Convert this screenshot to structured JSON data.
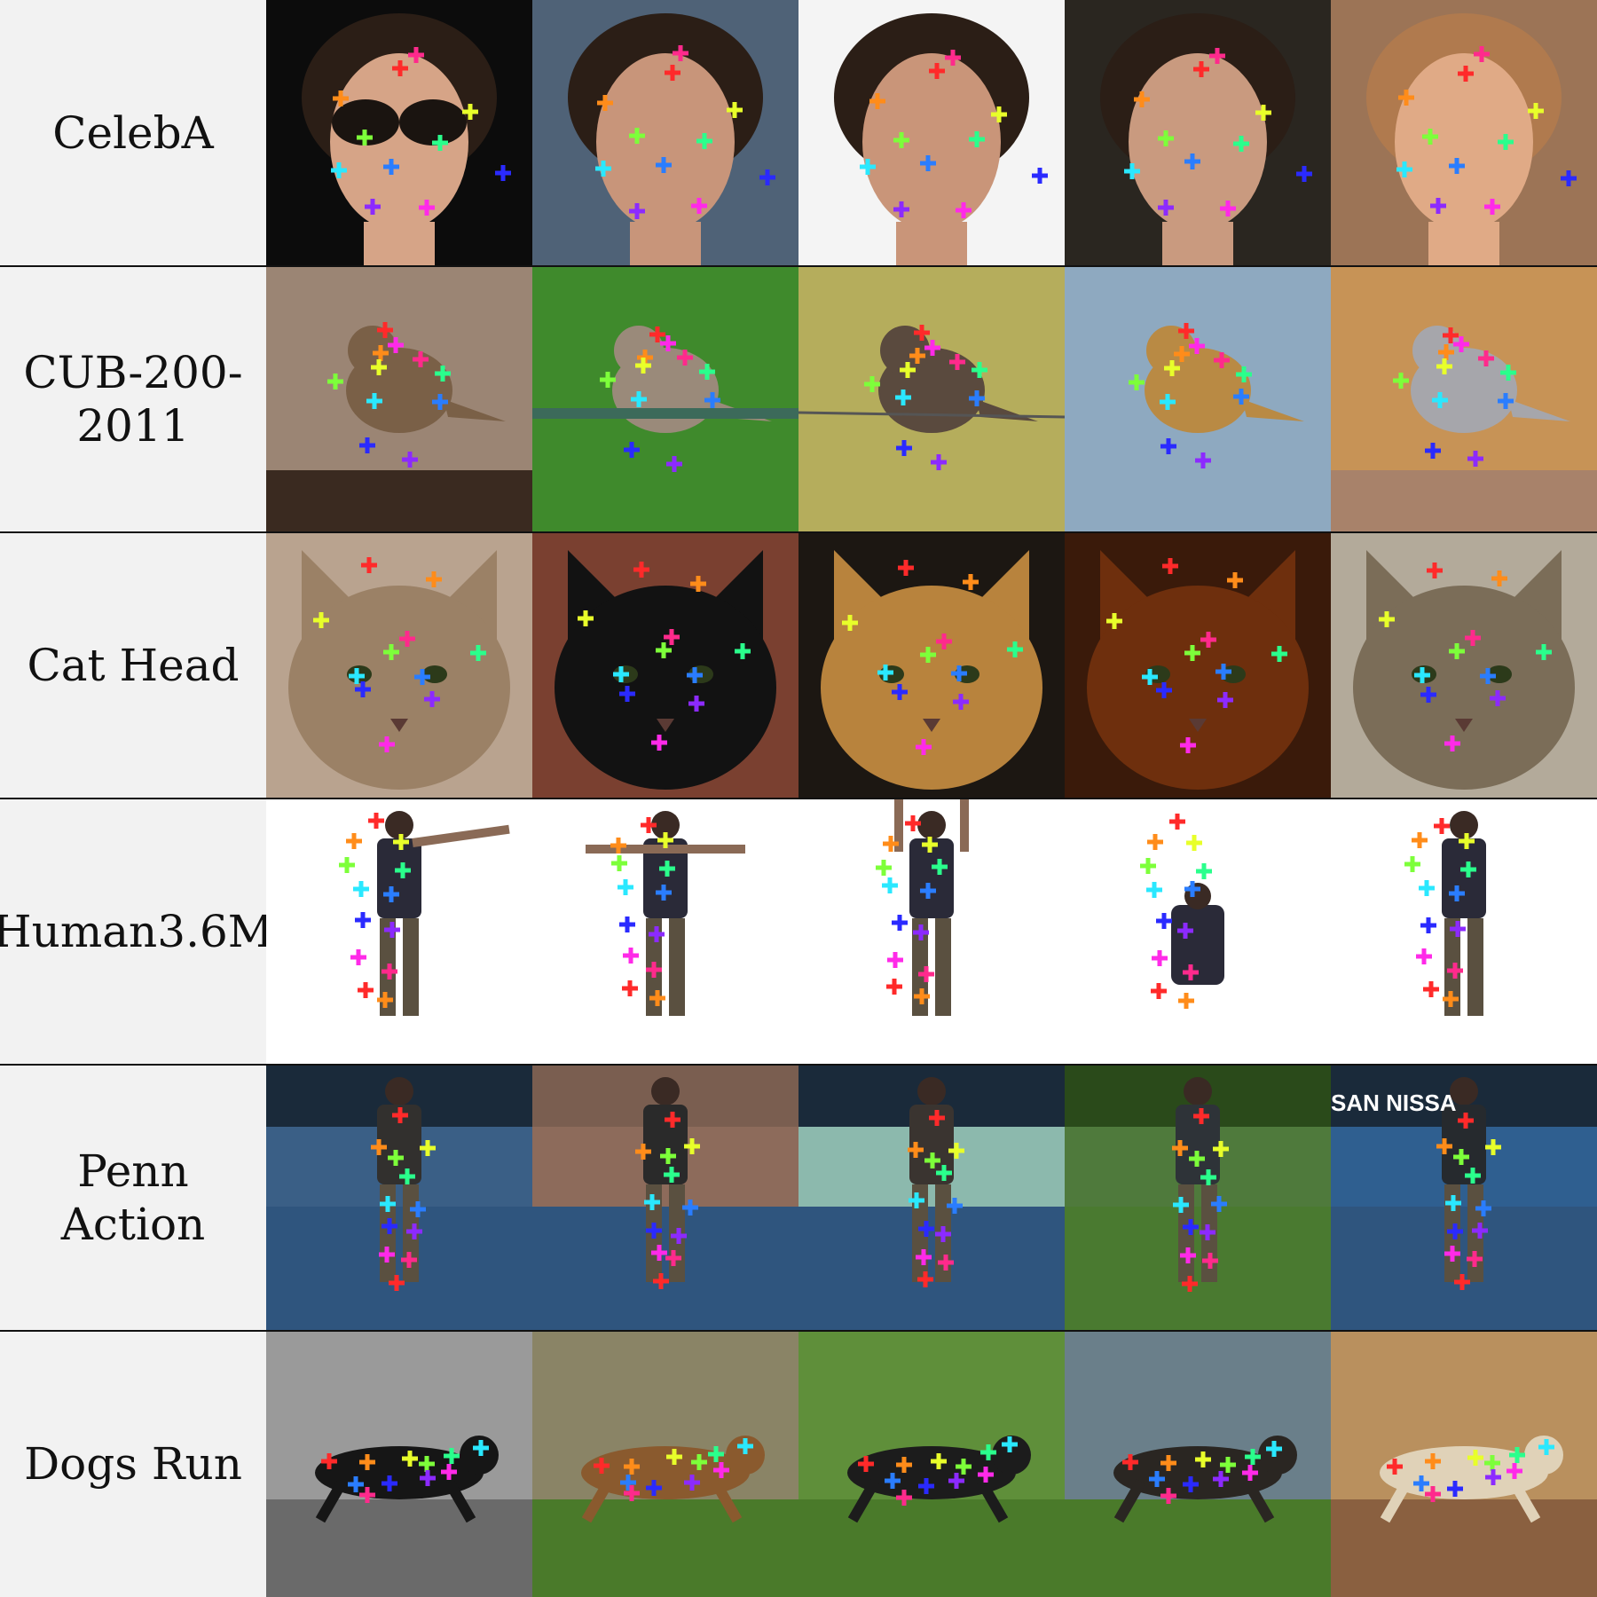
{
  "rows": [
    {
      "label": "CelebA",
      "kind": "face",
      "thumbnails": [
        {
          "subject": "woman-with-sunglasses",
          "bg": "#0c0c0c",
          "fg": "#d6a487"
        },
        {
          "subject": "man-with-beard",
          "bg": "#4f6277",
          "fg": "#c8957a"
        },
        {
          "subject": "woman-dark-hair",
          "bg": "#f4f4f4",
          "fg": "#c99579"
        },
        {
          "subject": "man-dark-hair",
          "bg": "#2a2620",
          "fg": "#c99a7f"
        },
        {
          "subject": "woman-fur-hat",
          "bg": "#9c7456",
          "fg": "#e0aa86"
        }
      ]
    },
    {
      "label": "CUB-200-\n2011",
      "kind": "bird",
      "thumbnails": [
        {
          "subject": "sparrow-on-ground",
          "bg": "#9b8574",
          "fg": "#7a6047"
        },
        {
          "subject": "bird-on-fence",
          "bg": "#3f8a2c",
          "fg": "#9a8a7a"
        },
        {
          "subject": "swallow-on-wire",
          "bg": "#b5ad5c",
          "fg": "#5a4a3e"
        },
        {
          "subject": "bunting-on-stem",
          "bg": "#8ea9c0",
          "fg": "#b98a44"
        },
        {
          "subject": "shrike-on-rock",
          "bg": "#c79356",
          "fg": "#a6a6ab"
        }
      ]
    },
    {
      "label": "Cat Head",
      "kind": "cat",
      "thumbnails": [
        {
          "subject": "fluffy-tortoiseshell-cat",
          "bg": "#b9a38f",
          "fg": "#9b8166"
        },
        {
          "subject": "black-cat",
          "bg": "#7a4030",
          "fg": "#121212"
        },
        {
          "subject": "orange-tabby-cat",
          "bg": "#1c1712",
          "fg": "#b8833d"
        },
        {
          "subject": "silhouetted-cat",
          "bg": "#3a1a0a",
          "fg": "#6e2f0d"
        },
        {
          "subject": "tabby-cat",
          "bg": "#b3aa9a",
          "fg": "#7b6d58"
        }
      ]
    },
    {
      "label": "Human3.6M",
      "kind": "human-white",
      "thumbnails": [
        {
          "subject": "person-pointing",
          "bg": "#ffffff",
          "fg": "#2a2a38"
        },
        {
          "subject": "person-arms-out",
          "bg": "#ffffff",
          "fg": "#2a2a38"
        },
        {
          "subject": "person-arms-up",
          "bg": "#ffffff",
          "fg": "#2a2a38"
        },
        {
          "subject": "person-crouching",
          "bg": "#ffffff",
          "fg": "#2a2a38"
        },
        {
          "subject": "person-hand-on-head",
          "bg": "#ffffff",
          "fg": "#2a2a38"
        }
      ]
    },
    {
      "label": "Penn Action",
      "kind": "human-scene",
      "thumbnails": [
        {
          "subject": "tennis-player-court",
          "bg": "#3a5f86",
          "fg": "#32302e"
        },
        {
          "subject": "jumping-jacks-building",
          "bg": "#8d6b5b",
          "fg": "#2a2a2a"
        },
        {
          "subject": "tennis-indoor",
          "bg": "#8cb9ad",
          "fg": "#3a3430"
        },
        {
          "subject": "golf-swing",
          "bg": "#4f7a3c",
          "fg": "#2e3338"
        },
        {
          "subject": "tennis-stadium",
          "bg": "#2f5f90",
          "fg": "#262a2e"
        }
      ],
      "signage": [
        "",
        "",
        "",
        "",
        "SAN  NISSA"
      ]
    },
    {
      "label": "Dogs Run",
      "kind": "dog",
      "thumbnails": [
        {
          "subject": "greyhound-grayscale",
          "bg": "#9a9a9a",
          "fg": "#161616"
        },
        {
          "subject": "dog-on-field",
          "bg": "#8a8466",
          "fg": "#8a5a2e"
        },
        {
          "subject": "border-collie-grass",
          "bg": "#5f8f3a",
          "fg": "#1c1c1c"
        },
        {
          "subject": "dog-agility-jump",
          "bg": "#6a7f8a",
          "fg": "#2a2622"
        },
        {
          "subject": "fluffy-dog-sand",
          "bg": "#b9905e",
          "fg": "#e0d2b8"
        }
      ]
    }
  ],
  "keypoint_colors": [
    "#ff2a2a",
    "#ff8c1a",
    "#e8ff2a",
    "#7dff3a",
    "#2aff8c",
    "#2ae8ff",
    "#2a7dff",
    "#2a2aff",
    "#8c2aff",
    "#ff2ae8",
    "#ff2a8c"
  ],
  "marker": "+"
}
